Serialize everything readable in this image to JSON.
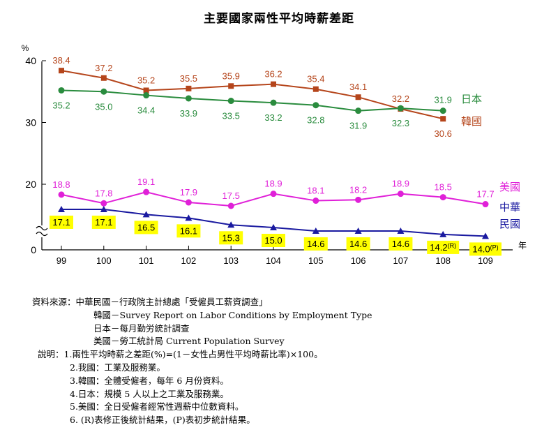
{
  "chart_data": {
    "type": "line",
    "title": "主要國家兩性平均時薪差距",
    "ylabel": "%",
    "xlabel": "年",
    "ylim": [
      0,
      40
    ],
    "y_ticks": [
      "0",
      "20",
      "30",
      "40"
    ],
    "axis_break": true,
    "categories": [
      "99",
      "100",
      "101",
      "102",
      "103",
      "104",
      "105",
      "106",
      "107",
      "108",
      "109"
    ],
    "series": [
      {
        "name": "韓國",
        "color": "#b5451b",
        "values": [
          38.4,
          37.2,
          35.2,
          35.5,
          35.9,
          36.2,
          35.4,
          34.1,
          32.2,
          30.6,
          null
        ],
        "labels": [
          "38.4",
          "37.2",
          "35.2",
          "35.5",
          "35.9",
          "36.2",
          "35.4",
          "34.1",
          "32.2",
          "30.6",
          ""
        ]
      },
      {
        "name": "日本",
        "color": "#2a8c3e",
        "values": [
          35.2,
          35.0,
          34.4,
          33.9,
          33.5,
          33.2,
          32.8,
          31.9,
          32.3,
          31.9,
          null
        ],
        "labels": [
          "35.2",
          "35.0",
          "34.4",
          "33.9",
          "33.5",
          "33.2",
          "32.8",
          "31.9",
          "32.3",
          "31.9",
          ""
        ]
      },
      {
        "name": "美國",
        "color": "#e020d8",
        "values": [
          18.8,
          17.8,
          19.1,
          17.9,
          17.5,
          18.9,
          18.1,
          18.2,
          18.9,
          18.5,
          17.7
        ],
        "labels": [
          "18.8",
          "17.8",
          "19.1",
          "17.9",
          "17.5",
          "18.9",
          "18.1",
          "18.2",
          "18.9",
          "18.5",
          "17.7"
        ]
      },
      {
        "name": "中華民國",
        "color": "#1a1aa0",
        "values": [
          17.1,
          17.1,
          16.5,
          16.1,
          15.3,
          15.0,
          14.6,
          14.6,
          14.6,
          14.2,
          14.0
        ],
        "labels": [
          "17.1",
          "17.1",
          "16.5",
          "16.1",
          "15.3",
          "15.0",
          "14.6",
          "14.6",
          "14.6",
          "14.2(R)",
          "14.0(P)"
        ]
      }
    ],
    "legend_labels": {
      "japan": "日本",
      "korea": "韓國",
      "usa": "美國",
      "roc_line1": "中華",
      "roc_line2": "民國"
    }
  },
  "notes": {
    "source_label": "資料來源：",
    "source_roc": "中華民國－行政院主計總處「受僱員工薪資調查」",
    "source_korea": "韓國－Survey Report on Labor Conditions by Employment Type",
    "source_japan": "日本－每月勤労統計調查",
    "source_usa": "美國－勞工統計局  Current Population Survey",
    "explain_label": "說明：",
    "item1": "1.兩性平均時薪之差距(%)=(1－女性占男性平均時薪比率)×100。",
    "item2": "2.我國：工業及服務業。",
    "item3": "3.韓國：全體受僱者，每年 6 月份資料。",
    "item4": "4.日本：規模 5 人以上之工業及服務業。",
    "item5": "5.美國：全日受僱者經常性週薪中位數資料。",
    "item6": "6. (R)表修正後統計結果，(P)表初步統計結果。"
  }
}
